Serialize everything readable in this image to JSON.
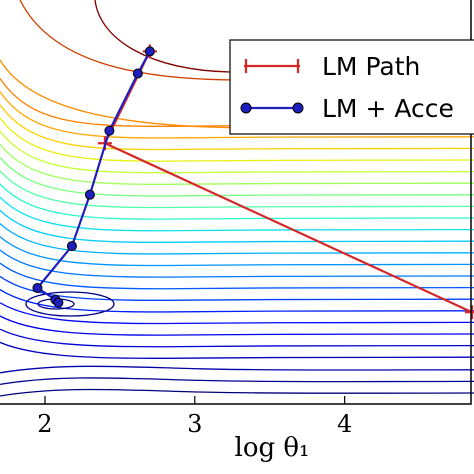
{
  "chart_data": {
    "type": "line",
    "xlabel": "log θ₁",
    "x_ticks": [
      2,
      3,
      4
    ],
    "xlim": [
      1.7,
      4.85
    ],
    "ylim": [
      -1.0,
      4.5
    ],
    "legend": {
      "placement": "top-right",
      "entries": [
        {
          "label": "LM Path",
          "color": "#d62728",
          "marker": "plus"
        },
        {
          "label": "LM + Acce",
          "color": "#1f1fbf",
          "marker": "circle"
        }
      ]
    },
    "series": [
      {
        "name": "LM Path",
        "color": "#d62728",
        "marker": "plus",
        "points": [
          [
            2.7,
            3.8
          ],
          [
            2.4,
            2.55
          ],
          [
            4.85,
            0.25
          ]
        ]
      },
      {
        "name": "LM + Acce",
        "color": "#1f1fbf",
        "marker": "circle",
        "points": [
          [
            2.7,
            3.8
          ],
          [
            2.62,
            3.5
          ],
          [
            2.43,
            2.72
          ],
          [
            2.3,
            1.85
          ],
          [
            2.18,
            1.15
          ],
          [
            1.95,
            0.58
          ],
          [
            2.07,
            0.42
          ],
          [
            2.09,
            0.38
          ]
        ]
      }
    ],
    "contours": {
      "colormap": "jet",
      "description_levels": 30
    }
  }
}
